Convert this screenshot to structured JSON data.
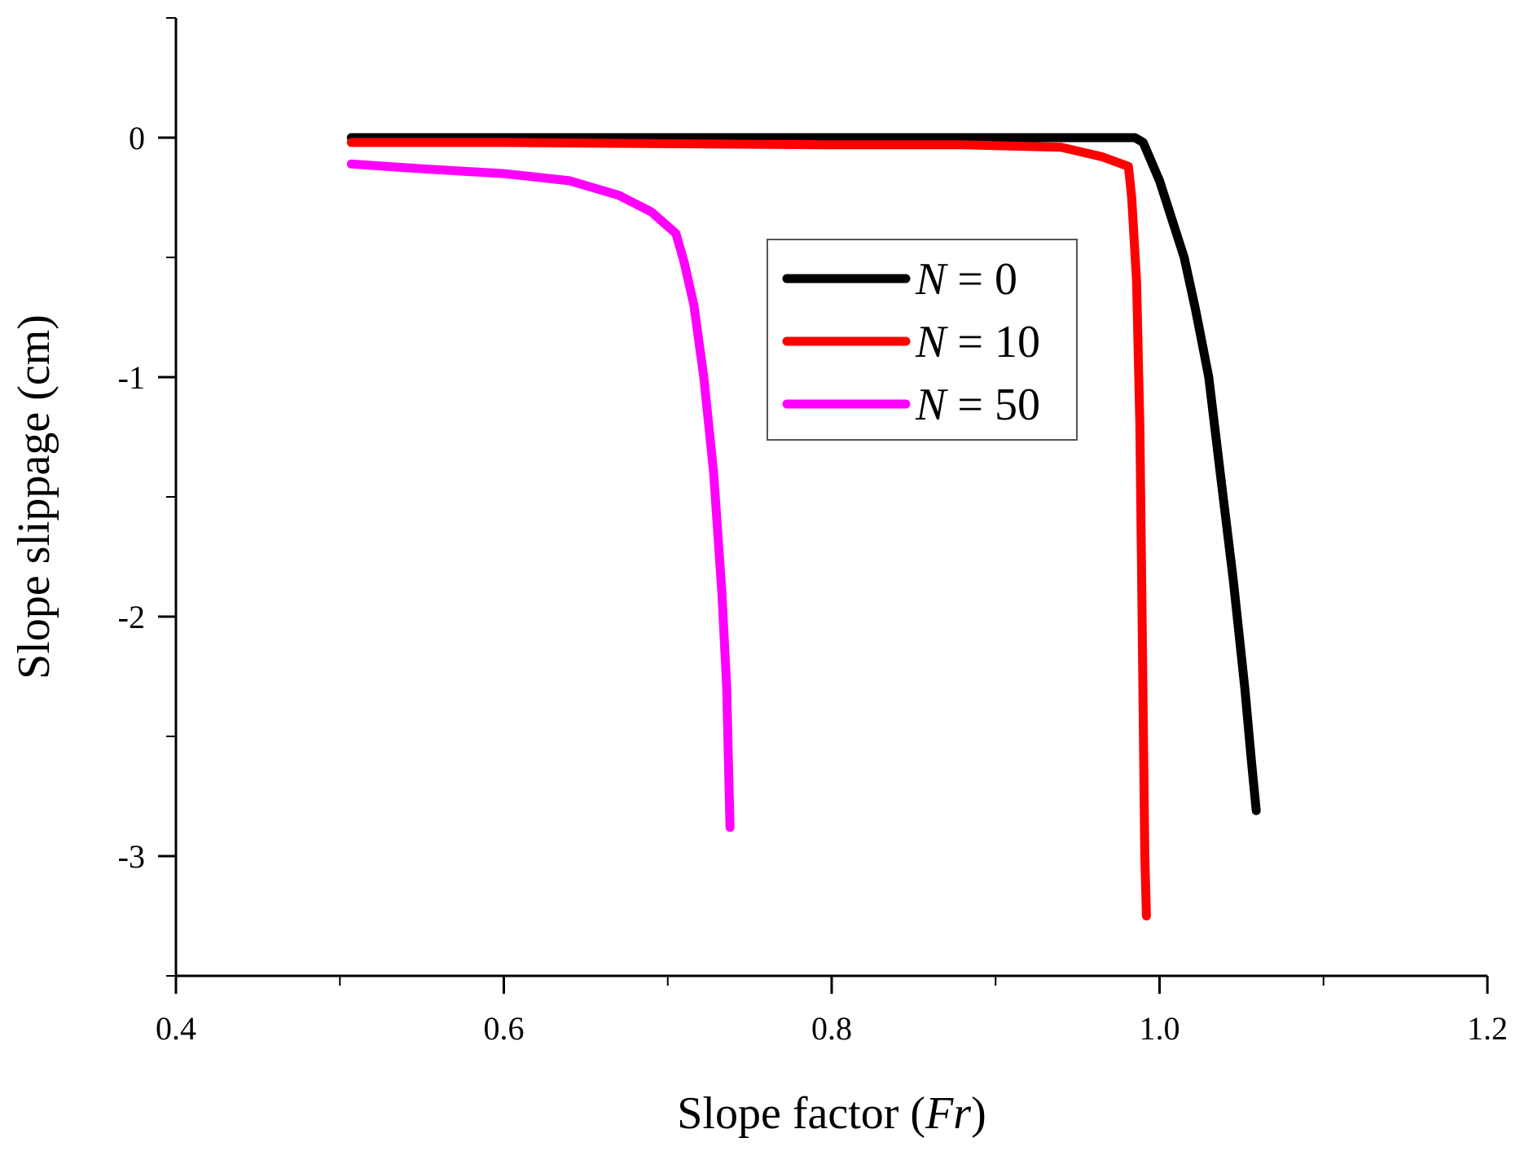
{
  "chart_data": {
    "type": "line",
    "title": "",
    "xlabel_prefix": "Slope factor (",
    "xlabel_var": "Fr",
    "xlabel_suffix": ")",
    "ylabel": "Slope slippage (cm)",
    "xlim": [
      0.4,
      1.2
    ],
    "ylim": [
      -3.5,
      0.5
    ],
    "x_ticks": [
      0.4,
      0.6,
      0.8,
      1.0,
      1.2
    ],
    "x_tick_labels": [
      "0.4",
      "0.6",
      "0.8",
      "1.0",
      "1.2"
    ],
    "x_minor_step": 0.1,
    "y_ticks": [
      0,
      -1,
      -2,
      -3
    ],
    "y_tick_labels": [
      "0",
      "-1",
      "-2",
      "-3"
    ],
    "y_minor_step": 0.5,
    "grid": false,
    "legend_position": "upper-middle-right",
    "series": [
      {
        "name_var": "N",
        "name_rest": " = 0",
        "color": "#000000",
        "points": [
          [
            0.507,
            0.0
          ],
          [
            0.6,
            0.0
          ],
          [
            0.7,
            0.0
          ],
          [
            0.8,
            0.0
          ],
          [
            0.9,
            0.0
          ],
          [
            0.95,
            0.0
          ],
          [
            0.985,
            0.0
          ],
          [
            0.99,
            -0.02
          ],
          [
            1.0,
            -0.18
          ],
          [
            1.015,
            -0.5
          ],
          [
            1.022,
            -0.72
          ],
          [
            1.03,
            -1.0
          ],
          [
            1.037,
            -1.4
          ],
          [
            1.045,
            -1.85
          ],
          [
            1.052,
            -2.3
          ],
          [
            1.056,
            -2.6
          ],
          [
            1.059,
            -2.81
          ]
        ]
      },
      {
        "name_var": "N",
        "name_rest": " = 10",
        "color": "#ff0000",
        "points": [
          [
            0.507,
            -0.02
          ],
          [
            0.6,
            -0.02
          ],
          [
            0.7,
            -0.025
          ],
          [
            0.8,
            -0.03
          ],
          [
            0.88,
            -0.03
          ],
          [
            0.94,
            -0.04
          ],
          [
            0.965,
            -0.08
          ],
          [
            0.981,
            -0.12
          ],
          [
            0.983,
            -0.25
          ],
          [
            0.986,
            -0.6
          ],
          [
            0.988,
            -1.2
          ],
          [
            0.989,
            -1.8
          ],
          [
            0.99,
            -2.4
          ],
          [
            0.991,
            -3.0
          ],
          [
            0.992,
            -3.25
          ]
        ]
      },
      {
        "name_var": "N",
        "name_rest": " = 50",
        "color": "#ff00ff",
        "points": [
          [
            0.507,
            -0.11
          ],
          [
            0.55,
            -0.13
          ],
          [
            0.6,
            -0.15
          ],
          [
            0.64,
            -0.18
          ],
          [
            0.67,
            -0.24
          ],
          [
            0.69,
            -0.31
          ],
          [
            0.705,
            -0.4
          ],
          [
            0.71,
            -0.52
          ],
          [
            0.716,
            -0.7
          ],
          [
            0.722,
            -1.0
          ],
          [
            0.728,
            -1.4
          ],
          [
            0.733,
            -1.9
          ],
          [
            0.736,
            -2.3
          ],
          [
            0.737,
            -2.6
          ],
          [
            0.738,
            -2.88
          ]
        ]
      }
    ]
  }
}
